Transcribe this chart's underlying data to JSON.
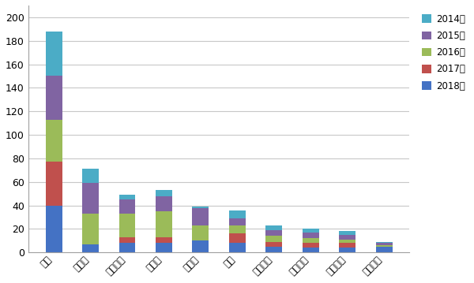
{
  "categories": [
    "宇通",
    "大金龙",
    "安凯客车",
    "苏金龙",
    "小金龙",
    "中通",
    "江淮客车",
    "青年客车",
    "亚星客车",
    "福田客车"
  ],
  "series": {
    "2018年": [
      40,
      7,
      8,
      8,
      10,
      8,
      5,
      4,
      4,
      5
    ],
    "2017年": [
      37,
      0,
      5,
      5,
      0,
      8,
      4,
      4,
      4,
      0
    ],
    "2016年": [
      36,
      26,
      20,
      22,
      13,
      7,
      5,
      4,
      3,
      1
    ],
    "2015年": [
      37,
      26,
      12,
      13,
      15,
      6,
      5,
      5,
      4,
      2
    ],
    "2014年": [
      38,
      12,
      4,
      5,
      1,
      7,
      4,
      3,
      3,
      1
    ]
  },
  "colors": {
    "2018年": "#4472C4",
    "2017年": "#C0504D",
    "2016年": "#9BBB59",
    "2015年": "#8064A2",
    "2014年": "#4BACC6"
  },
  "stack_order": [
    "2018年",
    "2017年",
    "2016年",
    "2015年",
    "2014年"
  ],
  "legend_order": [
    "2014年",
    "2015年",
    "2016年",
    "2017年",
    "2018年"
  ],
  "ylim": [
    0,
    210
  ],
  "yticks": [
    0,
    20,
    40,
    60,
    80,
    100,
    120,
    140,
    160,
    180,
    200
  ],
  "background_color": "#FFFFFF",
  "grid_color": "#C8C8C8",
  "bar_width": 0.45
}
